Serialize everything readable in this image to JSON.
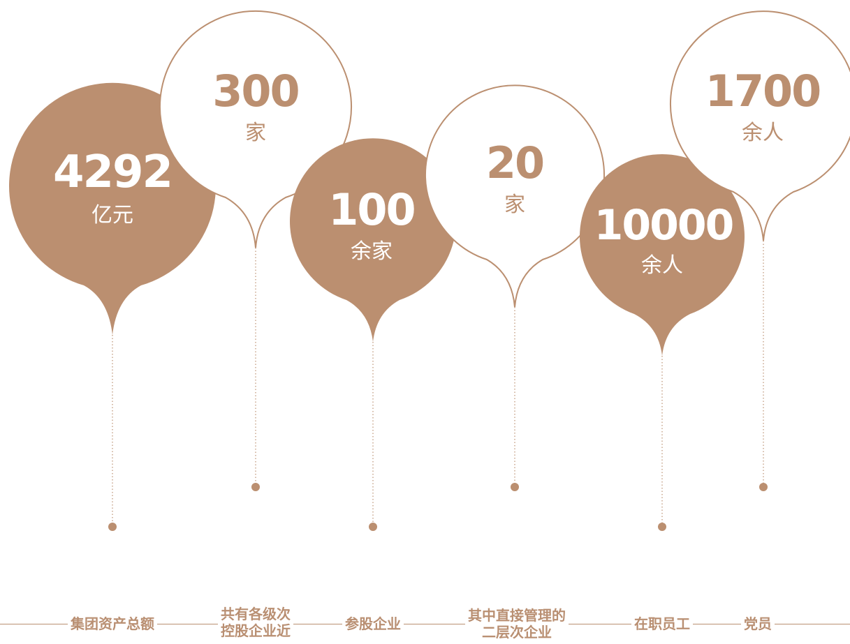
{
  "colors": {
    "accent": "#bb8f70",
    "white": "#ffffff"
  },
  "bubbles": [
    {
      "id": "group-assets",
      "value": "4292",
      "unit": "亿元",
      "style": "filled"
    },
    {
      "id": "controlled-companies",
      "value": "300",
      "unit": "家",
      "style": "outline"
    },
    {
      "id": "shareholding-companies",
      "value": "100",
      "unit": "余家",
      "style": "filled"
    },
    {
      "id": "direct-second-tier",
      "value": "20",
      "unit": "家",
      "style": "outline"
    },
    {
      "id": "employees",
      "value": "10000",
      "unit": "余人",
      "style": "filled"
    },
    {
      "id": "party-members",
      "value": "1700",
      "unit": "余人",
      "style": "outline"
    }
  ],
  "labels": [
    {
      "text": "集团资产总额"
    },
    {
      "text": "共有各级次\n控股企业近"
    },
    {
      "text": "参股企业"
    },
    {
      "text": "其中直接管理的\n二层次企业"
    },
    {
      "text": "在职员工"
    },
    {
      "text": "党员"
    }
  ]
}
